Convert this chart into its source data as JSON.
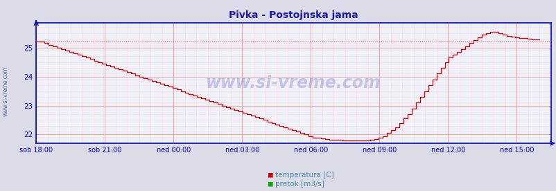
{
  "title": "Pivka - Postojnska jama",
  "title_color": "#1a1aaa",
  "title_fontsize": 10,
  "ylim": [
    21.7,
    25.85
  ],
  "yticks": [
    22,
    23,
    24,
    25
  ],
  "fig_bg_color": "#dcdce8",
  "plot_bg_color": "#f0f0f8",
  "axis_color": "#0000bb",
  "watermark_text": "www.si-vreme.com",
  "watermark_color": "#0000aa",
  "watermark_alpha": 0.18,
  "legend_items": [
    "temperatura [C]",
    "pretok [m3/s]"
  ],
  "legend_colors": [
    "#cc0000",
    "#00aa00"
  ],
  "legend_text_color": "#4488aa",
  "temp_color": "#cc0000",
  "temp_max_line_color": "#ff4444",
  "temp_max_value": 25.22,
  "xtick_labels": [
    "sob 18:00",
    "sob 21:00",
    "ned 00:00",
    "ned 03:00",
    "ned 06:00",
    "ned 09:00",
    "ned 12:00",
    "ned 15:00"
  ],
  "xtick_positions": [
    0,
    3,
    6,
    9,
    12,
    15,
    18,
    21
  ],
  "sidewatermark": "www.si-vreme.com",
  "xlim": [
    0,
    22.5
  ],
  "temp_data": [
    25.2,
    25.2,
    25.15,
    25.1,
    25.05,
    25.0,
    24.95,
    24.9,
    24.85,
    24.8,
    24.75,
    24.7,
    24.65,
    24.6,
    24.55,
    24.5,
    24.45,
    24.4,
    24.35,
    24.3,
    24.25,
    24.2,
    24.15,
    24.1,
    24.05,
    24.0,
    23.95,
    23.9,
    23.85,
    23.8,
    23.75,
    23.7,
    23.65,
    23.6,
    23.55,
    23.5,
    23.45,
    23.4,
    23.35,
    23.3,
    23.25,
    23.2,
    23.15,
    23.1,
    23.05,
    23.0,
    22.95,
    22.9,
    22.85,
    22.8,
    22.75,
    22.7,
    22.65,
    22.6,
    22.55,
    22.5,
    22.45,
    22.4,
    22.35,
    22.3,
    22.25,
    22.2,
    22.15,
    22.1,
    22.05,
    22.0,
    21.95,
    21.9,
    21.88,
    21.86,
    21.84,
    21.83,
    21.82,
    21.81,
    21.8,
    21.8,
    21.8,
    21.8,
    21.8,
    21.8,
    21.8,
    21.82,
    21.85,
    21.9,
    21.95,
    22.05,
    22.15,
    22.25,
    22.4,
    22.55,
    22.7,
    22.9,
    23.1,
    23.3,
    23.5,
    23.7,
    23.9,
    24.1,
    24.3,
    24.5,
    24.65,
    24.75,
    24.85,
    24.95,
    25.05,
    25.15,
    25.25,
    25.35,
    25.45,
    25.5,
    25.55,
    25.55,
    25.5,
    25.45,
    25.4,
    25.38,
    25.35,
    25.33,
    25.32,
    25.3,
    25.28,
    25.28,
    25.28
  ]
}
